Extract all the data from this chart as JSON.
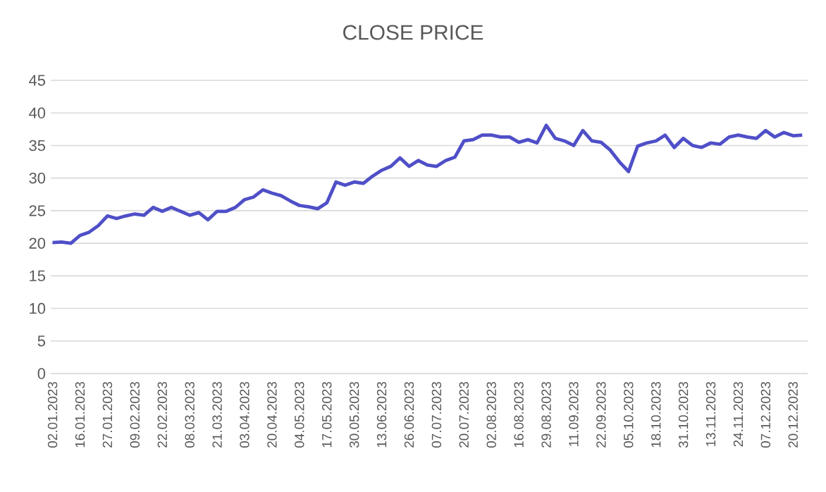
{
  "chart_data": {
    "type": "line",
    "title": "CLOSE PRICE",
    "categories": [
      "02.01.2023",
      null,
      null,
      "16.01.2023",
      null,
      null,
      "27.01.2023",
      null,
      null,
      "09.02.2023",
      null,
      null,
      "22.02.2023",
      null,
      null,
      "08.03.2023",
      null,
      null,
      "21.03.2023",
      null,
      null,
      "03.04.2023",
      null,
      null,
      "20.04.2023",
      null,
      null,
      "04.05.2023",
      null,
      null,
      "17.05.2023",
      null,
      null,
      "30.05.2023",
      null,
      null,
      "13.06.2023",
      null,
      null,
      "26.06.2023",
      null,
      null,
      "07.07.2023",
      null,
      null,
      "20.07.2023",
      null,
      null,
      "02.08.2023",
      null,
      null,
      "16.08.2023",
      null,
      null,
      "29.08.2023",
      null,
      null,
      "11.09.2023",
      null,
      null,
      "22.09.2023",
      null,
      null,
      "05.10.2023",
      null,
      null,
      "18.10.2023",
      null,
      null,
      "31.10.2023",
      null,
      null,
      "13.11.2023",
      null,
      null,
      "24.11.2023",
      null,
      null,
      "07.12.2023",
      null,
      null,
      "20.12.2023",
      null
    ],
    "series": [
      {
        "color": "#4f4fc8",
        "values": [
          20.1,
          20.2,
          20.0,
          21.2,
          21.7,
          22.7,
          24.2,
          23.8,
          24.2,
          24.5,
          24.3,
          25.5,
          24.9,
          25.5,
          24.9,
          24.3,
          24.7,
          23.6,
          24.9,
          24.9,
          25.5,
          26.7,
          27.1,
          28.2,
          27.7,
          27.3,
          26.5,
          25.8,
          25.6,
          25.3,
          26.2,
          29.4,
          28.9,
          29.4,
          29.2,
          30.3,
          31.2,
          31.8,
          33.1,
          31.8,
          32.7,
          32.0,
          31.8,
          32.7,
          33.2,
          35.7,
          35.9,
          36.6,
          36.6,
          36.3,
          36.3,
          35.5,
          35.9,
          35.4,
          38.1,
          36.1,
          35.7,
          35.0,
          37.3,
          35.7,
          35.5,
          34.3,
          32.5,
          31.0,
          34.9,
          35.4,
          35.7,
          36.6,
          34.7,
          36.1,
          35.0,
          34.7,
          35.4,
          35.2,
          36.3,
          36.6,
          36.3,
          36.1,
          37.3,
          36.3,
          37.0,
          36.5,
          36.6
        ]
      }
    ],
    "ylim": [
      0,
      45
    ],
    "yticks": [
      0,
      5,
      10,
      15,
      20,
      25,
      30,
      35,
      40,
      45
    ],
    "grid": "y",
    "legend": false,
    "marker": "none",
    "line_style": "solid"
  }
}
